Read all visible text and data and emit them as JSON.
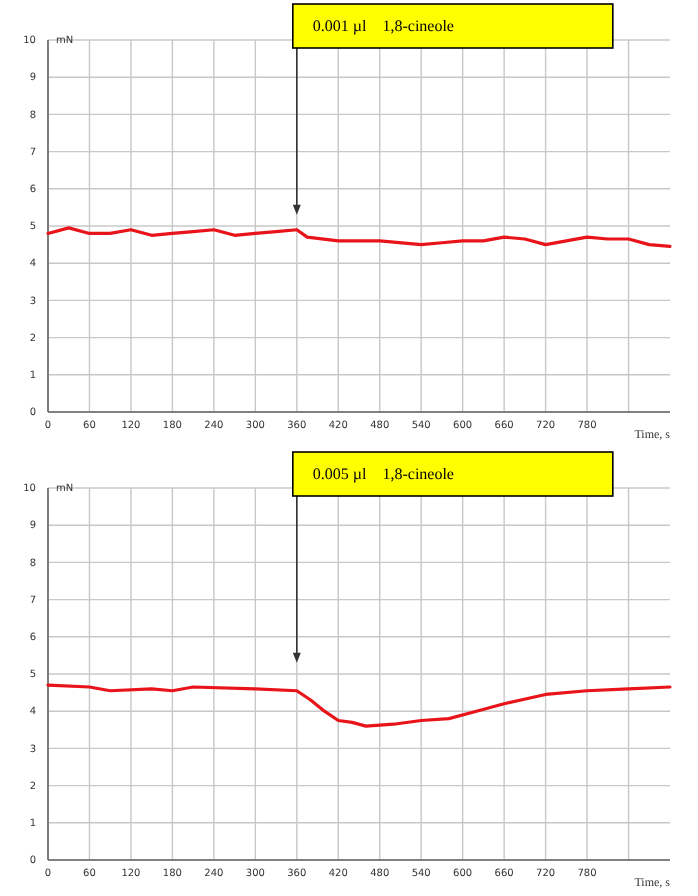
{
  "chart_data": [
    {
      "type": "line",
      "ylabel": "mN",
      "xlabel": "Time, s",
      "xlim": [
        0,
        900
      ],
      "ylim": [
        0,
        10
      ],
      "xticks": [
        0,
        60,
        120,
        180,
        240,
        300,
        360,
        420,
        480,
        540,
        600,
        660,
        720,
        780,
        {
          "value": 840,
          "label": null
        }
      ],
      "yticks": [
        0,
        1,
        2,
        3,
        4,
        5,
        6,
        7,
        8,
        9,
        10
      ],
      "grid": true,
      "marker": "none",
      "line_style": "solid",
      "annotations": [
        "0.001 µl    1,8-cineole"
      ],
      "series": [
        {
          "color": "#e8141a",
          "x": [
            0,
            30,
            60,
            90,
            120,
            150,
            180,
            210,
            240,
            270,
            300,
            330,
            360,
            375,
            420,
            480,
            540,
            570,
            600,
            630,
            660,
            690,
            720,
            750,
            780,
            810,
            840,
            870,
            900
          ],
          "values": [
            4.8,
            4.95,
            4.8,
            4.8,
            4.9,
            4.75,
            4.8,
            4.85,
            4.9,
            4.75,
            4.8,
            4.85,
            4.9,
            4.7,
            4.6,
            4.6,
            4.5,
            4.55,
            4.6,
            4.6,
            4.7,
            4.65,
            4.5,
            4.6,
            4.7,
            4.65,
            4.65,
            4.5,
            4.45
          ]
        }
      ]
    },
    {
      "type": "line",
      "ylabel": "mN",
      "xlabel": "Time, s",
      "xlim": [
        0,
        900
      ],
      "ylim": [
        0,
        10
      ],
      "xticks": [
        0,
        60,
        120,
        180,
        240,
        300,
        360,
        420,
        480,
        540,
        600,
        660,
        720,
        780,
        {
          "value": 840,
          "label": null
        }
      ],
      "yticks": [
        0,
        1,
        2,
        3,
        4,
        5,
        6,
        7,
        8,
        9,
        10
      ],
      "grid": true,
      "marker": "none",
      "line_style": "solid",
      "annotations": [
        "0.005 µl    1,8-cineole"
      ],
      "series": [
        {
          "color": "#e8141a",
          "x": [
            0,
            60,
            90,
            150,
            180,
            210,
            300,
            360,
            380,
            400,
            420,
            440,
            460,
            500,
            540,
            580,
            620,
            660,
            720,
            780,
            840,
            900
          ],
          "values": [
            4.7,
            4.65,
            4.55,
            4.6,
            4.55,
            4.65,
            4.6,
            4.55,
            4.3,
            4.0,
            3.75,
            3.7,
            3.6,
            3.65,
            3.75,
            3.8,
            4.0,
            4.2,
            4.45,
            4.55,
            4.6,
            4.65
          ]
        }
      ]
    }
  ]
}
